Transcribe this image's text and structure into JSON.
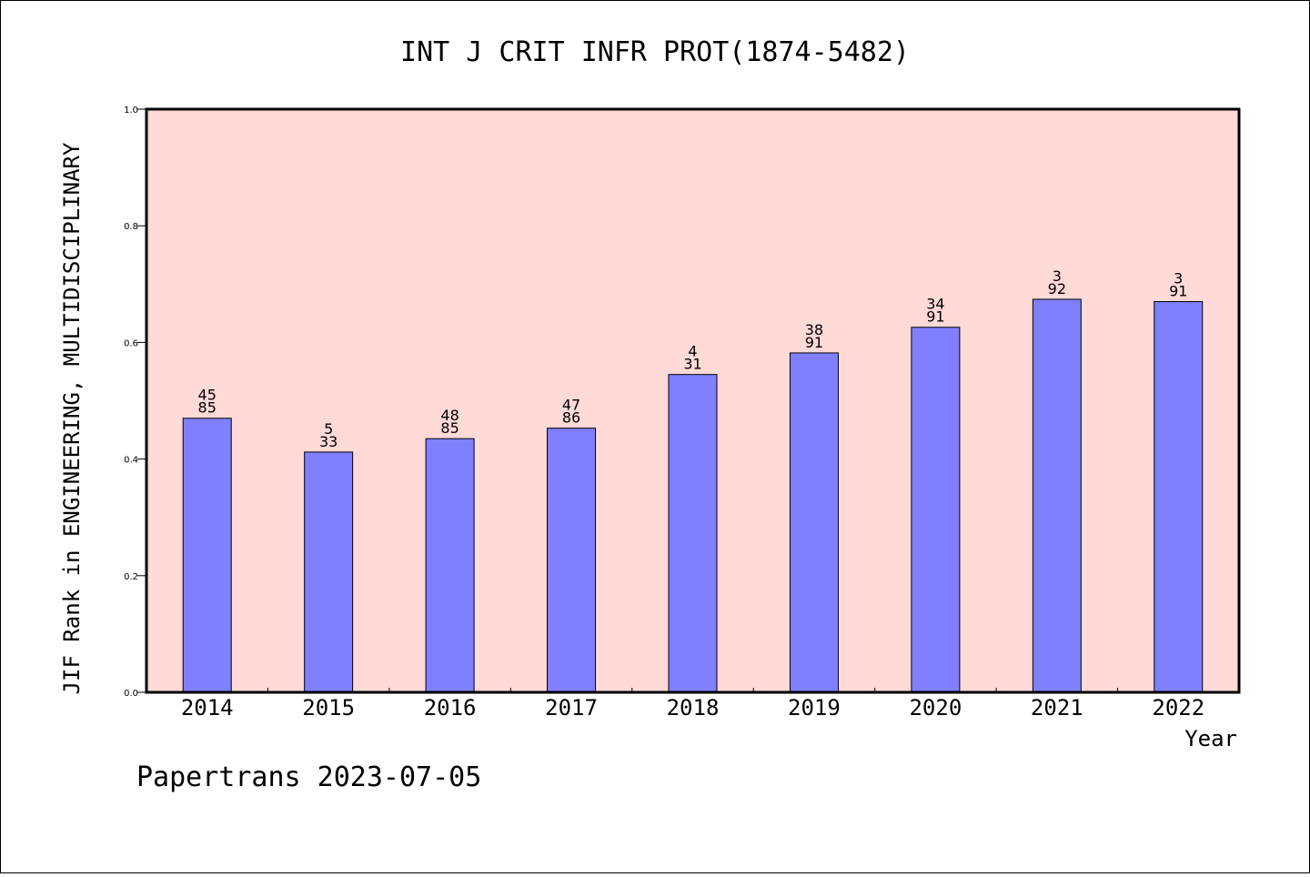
{
  "chart_data": {
    "type": "bar",
    "title": "INT J CRIT INFR PROT(1874-5482)",
    "xlabel": "Year",
    "ylabel": "JIF Rank in ENGINEERING, MULTIDISCIPLINARY",
    "ylim": [
      0,
      1
    ],
    "yticks": [
      "0.0",
      "0.2",
      "0.4",
      "0.6",
      "0.8",
      "1.0"
    ],
    "categories": [
      "2014",
      "2015",
      "2016",
      "2017",
      "2018",
      "2019",
      "2020",
      "2021",
      "2022"
    ],
    "values": [
      0.47,
      0.412,
      0.435,
      0.453,
      0.545,
      0.582,
      0.626,
      0.674,
      0.67
    ],
    "labels": [
      {
        "rank": "45",
        "total": "85"
      },
      {
        "rank": "5",
        "total": "33"
      },
      {
        "rank": "48",
        "total": "85"
      },
      {
        "rank": "47",
        "total": "86"
      },
      {
        "rank": "4",
        "total": "31"
      },
      {
        "rank": "38",
        "total": "91"
      },
      {
        "rank": "34",
        "total": "91"
      },
      {
        "rank": "3",
        "total": "92"
      },
      {
        "rank": "3",
        "total": "91"
      }
    ],
    "grid": false,
    "colors": {
      "plot_background": "#ffdad7",
      "bar": "#8080ff"
    }
  },
  "footer": "Papertrans 2023-07-05"
}
